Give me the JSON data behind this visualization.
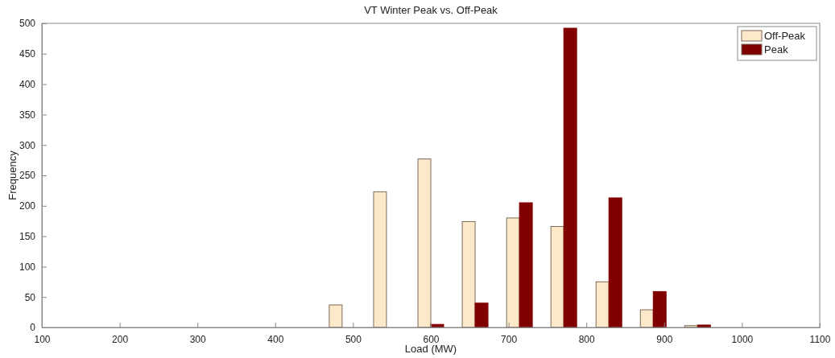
{
  "chart_data": {
    "type": "bar",
    "title": "VT Winter Peak vs. Off-Peak",
    "xlabel": "Load (MW)",
    "ylabel": "Frequency",
    "x": [
      486,
      543,
      600,
      657,
      714,
      771,
      829,
      886,
      943
    ],
    "series": [
      {
        "name": "Off-Peak",
        "color": "#fde9c9",
        "values": [
          37,
          223,
          277,
          174,
          180,
          166,
          75,
          29,
          3
        ]
      },
      {
        "name": "Peak",
        "color": "#800000",
        "values": [
          0,
          0,
          5,
          40,
          205,
          492,
          213,
          59,
          4
        ]
      }
    ],
    "xlim": [
      100,
      1100
    ],
    "xticks": [
      100,
      200,
      300,
      400,
      500,
      600,
      700,
      800,
      900,
      1000,
      1100
    ],
    "ylim": [
      0,
      500
    ],
    "yticks": [
      0,
      50,
      100,
      150,
      200,
      250,
      300,
      350,
      400,
      450,
      500
    ],
    "legend": "top right",
    "grid": false
  }
}
